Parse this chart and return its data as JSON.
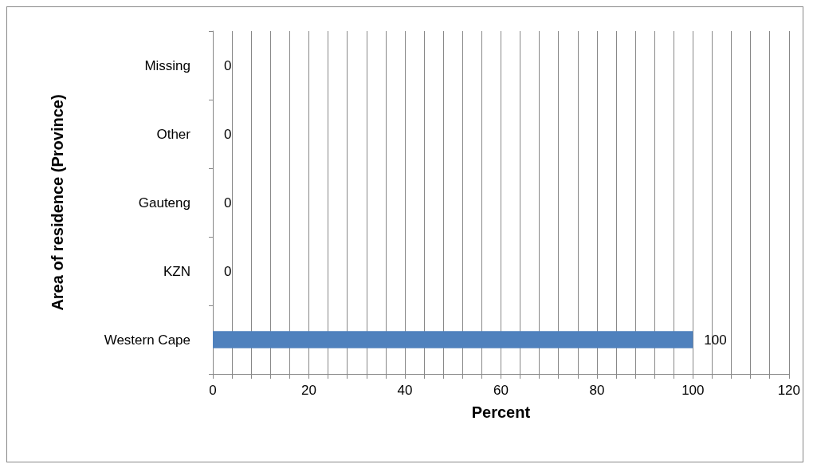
{
  "chart_data": {
    "type": "bar",
    "orientation": "horizontal",
    "xlabel": "Percent",
    "ylabel": "Area of residence (Province)",
    "categories": [
      "Missing",
      "Other",
      "Gauteng",
      "KZN",
      "Western Cape"
    ],
    "values": [
      0,
      0,
      0,
      0,
      100
    ],
    "color": "#4f81bd",
    "data_labels": true,
    "xlim": [
      0,
      120
    ],
    "xticks": [
      0,
      {
        "value": 4,
        "label": null
      },
      {
        "value": 8,
        "label": null
      },
      {
        "value": 12,
        "label": null
      },
      {
        "value": 16,
        "label": null
      },
      20,
      {
        "value": 24,
        "label": null
      },
      {
        "value": 28,
        "label": null
      },
      {
        "value": 32,
        "label": null
      },
      {
        "value": 36,
        "label": null
      },
      40,
      {
        "value": 44,
        "label": null
      },
      {
        "value": 48,
        "label": null
      },
      {
        "value": 52,
        "label": null
      },
      {
        "value": 56,
        "label": null
      },
      60,
      {
        "value": 64,
        "label": null
      },
      {
        "value": 68,
        "label": null
      },
      {
        "value": 72,
        "label": null
      },
      {
        "value": 76,
        "label": null
      },
      80,
      {
        "value": 84,
        "label": null
      },
      {
        "value": 88,
        "label": null
      },
      {
        "value": 92,
        "label": null
      },
      {
        "value": 96,
        "label": null
      },
      100,
      {
        "value": 104,
        "label": null
      },
      {
        "value": 108,
        "label": null
      },
      {
        "value": 112,
        "label": null
      },
      {
        "value": 116,
        "label": null
      },
      120
    ],
    "grid": "x"
  }
}
